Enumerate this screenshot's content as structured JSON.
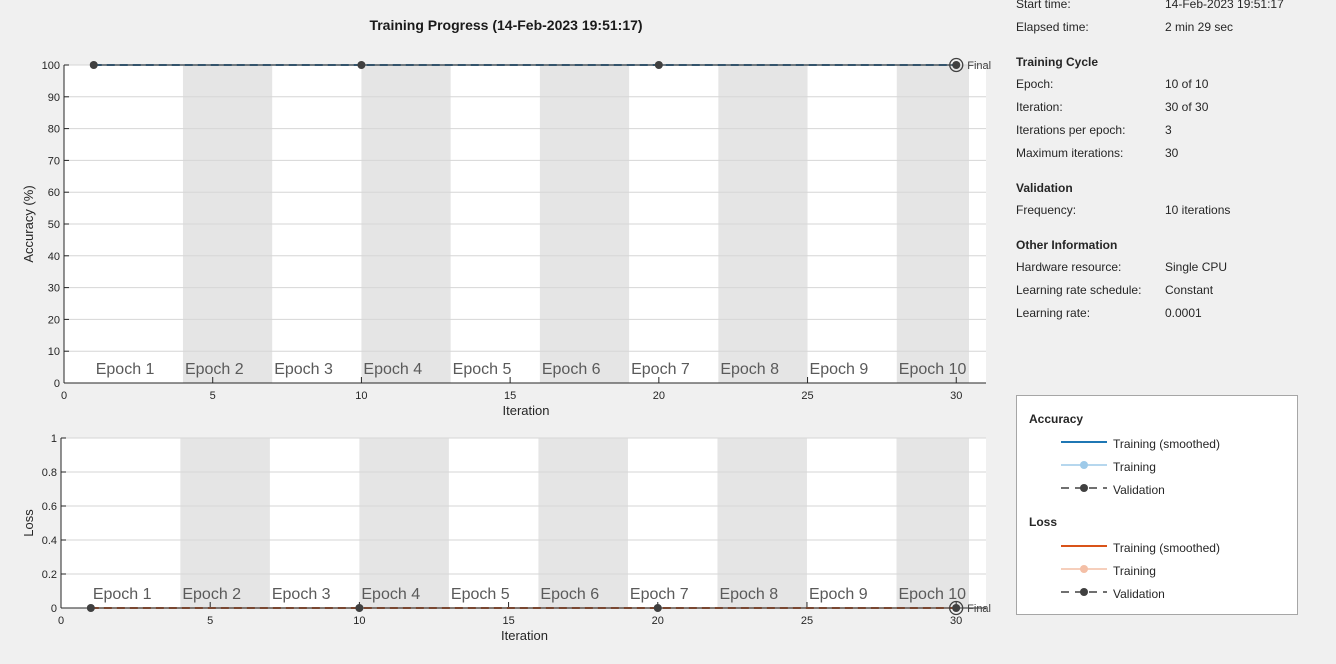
{
  "title": "Training Progress (14-Feb-2023 19:51:17)",
  "info": {
    "time_rows": [
      {
        "key": "Start time:",
        "value": "14-Feb-2023 19:51:17"
      },
      {
        "key": "Elapsed time:",
        "value": "2 min 29 sec"
      }
    ],
    "cycle_head": "Training Cycle",
    "cycle_rows": [
      {
        "key": "Epoch:",
        "value": "10 of 10"
      },
      {
        "key": "Iteration:",
        "value": "30 of 30"
      },
      {
        "key": "Iterations per epoch:",
        "value": "3"
      },
      {
        "key": "Maximum iterations:",
        "value": "30"
      }
    ],
    "validation_head": "Validation",
    "validation_rows": [
      {
        "key": "Frequency:",
        "value": "10 iterations"
      }
    ],
    "other_head": "Other Information",
    "other_rows": [
      {
        "key": "Hardware resource:",
        "value": "Single CPU"
      },
      {
        "key": "Learning rate schedule:",
        "value": "Constant"
      },
      {
        "key": "Learning rate:",
        "value": "0.0001"
      }
    ]
  },
  "legend": {
    "accuracy_head": "Accuracy",
    "accuracy_items": [
      {
        "label": "Training (smoothed)",
        "style": "smoothed",
        "color": "#1f77b4"
      },
      {
        "label": "Training",
        "style": "marker",
        "color": "#9ecae9"
      },
      {
        "label": "Validation",
        "style": "dashed-marker",
        "color": "#404040"
      }
    ],
    "loss_head": "Loss",
    "loss_items": [
      {
        "label": "Training (smoothed)",
        "style": "smoothed",
        "color": "#d95319"
      },
      {
        "label": "Training",
        "style": "marker",
        "color": "#f4bfa6"
      },
      {
        "label": "Validation",
        "style": "dashed-marker",
        "color": "#404040"
      }
    ]
  },
  "chart_data": [
    {
      "type": "line",
      "ylabel": "Accuracy (%)",
      "xlabel": "Iteration",
      "xlim": [
        0,
        31
      ],
      "ylim": [
        0,
        100
      ],
      "xticks": [
        0,
        5,
        10,
        15,
        20,
        25,
        30
      ],
      "yticks": [
        0,
        10,
        20,
        30,
        40,
        50,
        60,
        70,
        80,
        90,
        100
      ],
      "epoch_labels": [
        "Epoch 1",
        "Epoch 2",
        "Epoch 3",
        "Epoch 4",
        "Epoch 5",
        "Epoch 6",
        "Epoch 7",
        "Epoch 8",
        "Epoch 9",
        "Epoch 10"
      ],
      "iterations_per_epoch": 3,
      "final_label": "Final",
      "series": [
        {
          "name": "Training (smoothed)",
          "color": "#1f77b4",
          "x": [
            1,
            30
          ],
          "y": [
            100,
            100
          ]
        },
        {
          "name": "Training",
          "color": "#9ecae9",
          "x": [
            1,
            30
          ],
          "y": [
            100,
            100
          ]
        },
        {
          "name": "Validation",
          "color": "#404040",
          "x": [
            1,
            10,
            20,
            30
          ],
          "y": [
            100,
            100,
            100,
            100
          ]
        }
      ]
    },
    {
      "type": "line",
      "ylabel": "Loss",
      "xlabel": "Iteration",
      "xlim": [
        0,
        31
      ],
      "ylim": [
        0,
        1
      ],
      "xticks": [
        0,
        5,
        10,
        15,
        20,
        25,
        30
      ],
      "yticks": [
        0,
        0.2,
        0.4,
        0.6,
        0.8,
        1
      ],
      "epoch_labels": [
        "Epoch 1",
        "Epoch 2",
        "Epoch 3",
        "Epoch 4",
        "Epoch 5",
        "Epoch 6",
        "Epoch 7",
        "Epoch 8",
        "Epoch 9",
        "Epoch 10"
      ],
      "iterations_per_epoch": 3,
      "final_label": "Final",
      "series": [
        {
          "name": "Training (smoothed)",
          "color": "#d95319",
          "x": [
            1,
            30
          ],
          "y": [
            0,
            0
          ]
        },
        {
          "name": "Training",
          "color": "#f4bfa6",
          "x": [
            1,
            30
          ],
          "y": [
            0,
            0
          ]
        },
        {
          "name": "Validation",
          "color": "#404040",
          "x": [
            1,
            10,
            20,
            30
          ],
          "y": [
            0,
            0,
            0,
            0
          ]
        }
      ]
    }
  ]
}
